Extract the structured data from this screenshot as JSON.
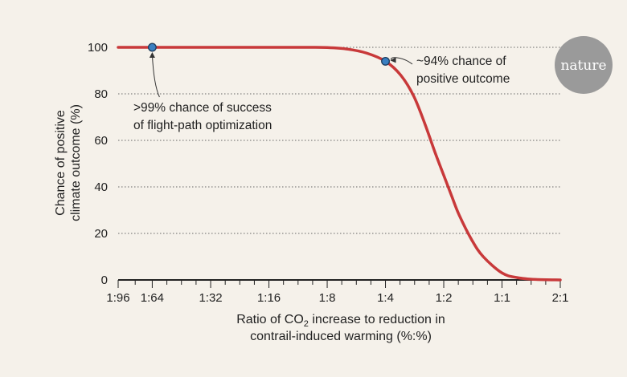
{
  "chart_data": {
    "type": "line",
    "xlabel_line1_pre": "Ratio of CO",
    "xlabel_line1_sub": "2",
    "xlabel_line1_post": " increase to reduction in",
    "xlabel_line2": "contrail-induced warming (%:%)",
    "ylabel_line1": "Chance of positive",
    "ylabel_line2": "climate outcome (%)",
    "x_ticks": [
      "1:96",
      "1:64",
      "1:32",
      "1:16",
      "1:8",
      "1:4",
      "1:2",
      "1:1",
      "2:1"
    ],
    "x_tick_values": [
      0.0104,
      0.0156,
      0.03125,
      0.0625,
      0.125,
      0.25,
      0.5,
      1,
      2
    ],
    "x_scale": "log",
    "y_ticks": [
      "0",
      "20",
      "40",
      "60",
      "80",
      "100"
    ],
    "y_tick_values": [
      0,
      20,
      40,
      60,
      80,
      100
    ],
    "ylim": [
      0,
      100
    ],
    "grid": "horizontal dotted",
    "series": [
      {
        "color": "#c8393a",
        "points": [
          [
            0.0104,
            100
          ],
          [
            0.0156,
            100
          ],
          [
            0.03125,
            100
          ],
          [
            0.0625,
            100
          ],
          [
            0.1,
            100
          ],
          [
            0.125,
            99.9
          ],
          [
            0.16,
            99.2
          ],
          [
            0.2,
            97.5
          ],
          [
            0.25,
            94
          ],
          [
            0.3,
            88
          ],
          [
            0.35,
            79
          ],
          [
            0.4,
            67
          ],
          [
            0.45,
            55
          ],
          [
            0.5,
            45
          ],
          [
            0.55,
            36
          ],
          [
            0.6,
            28
          ],
          [
            0.7,
            17
          ],
          [
            0.8,
            10
          ],
          [
            1,
            3
          ],
          [
            1.2,
            1
          ],
          [
            1.5,
            0.2
          ],
          [
            2,
            0
          ]
        ]
      }
    ],
    "markers": [
      {
        "x": 0.0156,
        "y": 100,
        "label_line1": ">99% chance of success",
        "label_line2": "of flight-path optimization"
      },
      {
        "x": 0.25,
        "y": 94,
        "label_line1": "~94% chance of",
        "label_line2": "positive outcome"
      }
    ],
    "marker_color": "#3a7fc1"
  },
  "logo": {
    "text": "nature",
    "color": "#9a9a9a"
  }
}
